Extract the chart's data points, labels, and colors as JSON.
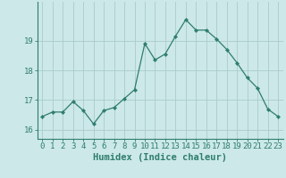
{
  "x": [
    0,
    1,
    2,
    3,
    4,
    5,
    6,
    7,
    8,
    9,
    10,
    11,
    12,
    13,
    14,
    15,
    16,
    17,
    18,
    19,
    20,
    21,
    22,
    23
  ],
  "y": [
    16.45,
    16.6,
    16.6,
    16.95,
    16.65,
    16.2,
    16.65,
    16.75,
    17.05,
    17.35,
    18.9,
    18.35,
    18.55,
    19.15,
    19.7,
    19.35,
    19.35,
    19.05,
    18.7,
    18.25,
    17.75,
    17.4,
    16.7,
    16.45
  ],
  "line_color": "#2e7d6e",
  "marker": "D",
  "marker_size": 2.2,
  "bg_color": "#cce8e8",
  "grid_color": "#aacccc",
  "axis_color": "#2e7d6e",
  "xlabel": "Humidex (Indice chaleur)",
  "ylim": [
    15.7,
    20.3
  ],
  "yticks": [
    16,
    17,
    18,
    19
  ],
  "xticks": [
    0,
    1,
    2,
    3,
    4,
    5,
    6,
    7,
    8,
    9,
    10,
    11,
    12,
    13,
    14,
    15,
    16,
    17,
    18,
    19,
    20,
    21,
    22,
    23
  ],
  "tick_fontsize": 6.5,
  "xlabel_fontsize": 7.5
}
